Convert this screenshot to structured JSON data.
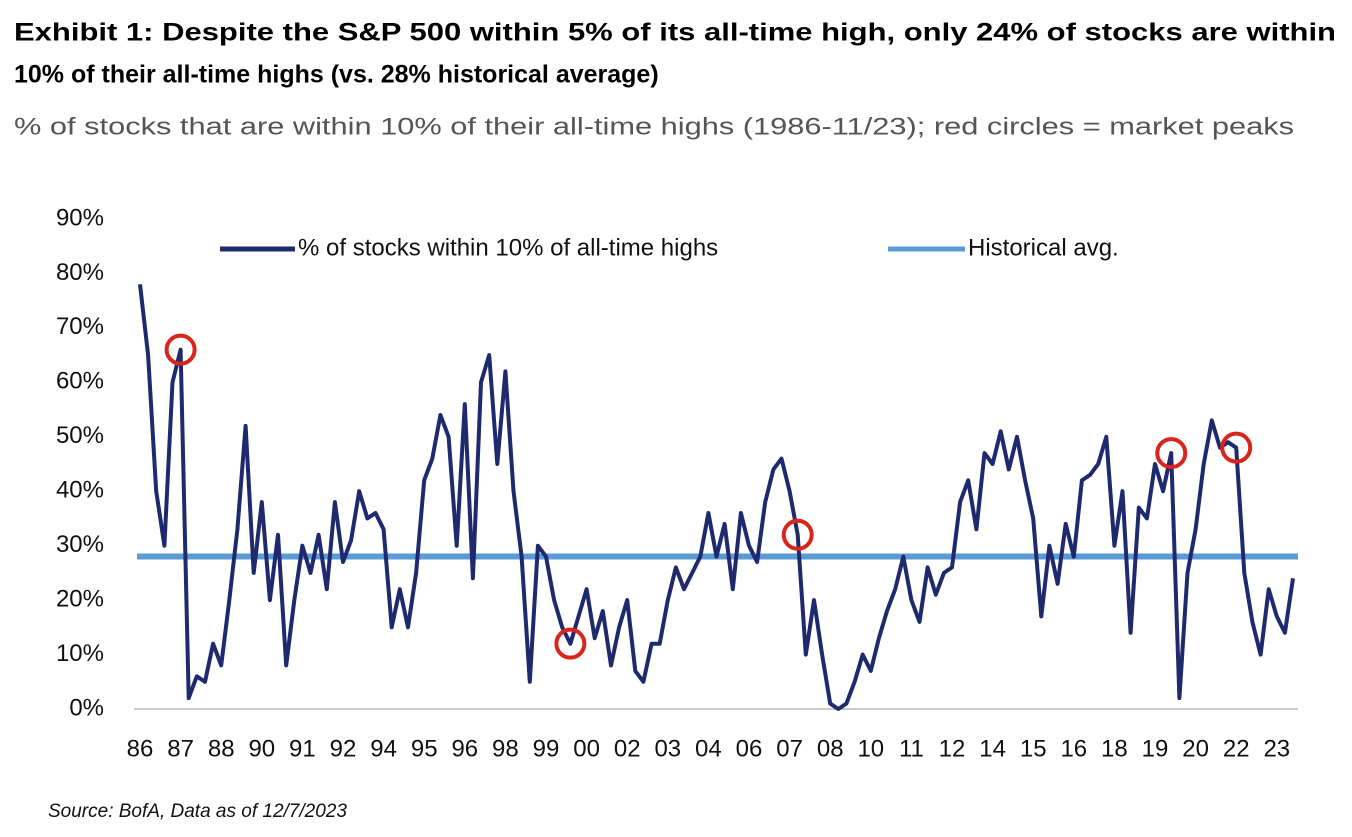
{
  "chart_data": {
    "type": "line",
    "title": [
      "Exhibit 1: Despite the S&P 500 within 5% of its all-time high, only 24% of stocks are within",
      "10% of their all-time highs (vs. 28% historical average)"
    ],
    "subtitle": "% of stocks that are within 10% of their all-time highs (1986-11/23); red circles = market peaks",
    "source": "Source: BofA, Data as of 12/7/2023",
    "categories": [
      "86",
      null,
      null,
      null,
      null,
      "87",
      null,
      null,
      null,
      null,
      "88",
      null,
      null,
      null,
      null,
      "90",
      null,
      null,
      null,
      null,
      "91",
      null,
      null,
      null,
      null,
      "92",
      null,
      null,
      null,
      null,
      "94",
      null,
      null,
      null,
      null,
      "95",
      null,
      null,
      null,
      null,
      "96",
      null,
      null,
      null,
      null,
      "98",
      null,
      null,
      null,
      null,
      "99",
      null,
      null,
      null,
      null,
      "00",
      null,
      null,
      null,
      null,
      "02",
      null,
      null,
      null,
      null,
      "03",
      null,
      null,
      null,
      null,
      "04",
      null,
      null,
      null,
      null,
      "06",
      null,
      null,
      null,
      null,
      "07",
      null,
      null,
      null,
      null,
      "08",
      null,
      null,
      null,
      null,
      "10",
      null,
      null,
      null,
      null,
      "11",
      null,
      null,
      null,
      null,
      "12",
      null,
      null,
      null,
      null,
      "14",
      null,
      null,
      null,
      null,
      "15",
      null,
      null,
      null,
      null,
      "16",
      null,
      null,
      null,
      null,
      "18",
      null,
      null,
      null,
      null,
      "19",
      null,
      null,
      null,
      null,
      "20",
      null,
      null,
      null,
      null,
      "22",
      null,
      null,
      null,
      null,
      "23",
      null,
      null
    ],
    "series": [
      {
        "name": "% of stocks within 10% of all-time highs",
        "color": "#1f2a6e",
        "values": [
          78,
          65,
          40,
          30,
          60,
          66,
          2,
          6,
          5,
          12,
          8,
          20,
          33,
          52,
          25,
          38,
          20,
          32,
          8,
          20,
          30,
          25,
          32,
          22,
          38,
          27,
          31,
          40,
          35,
          36,
          33,
          15,
          22,
          15,
          25,
          42,
          46,
          54,
          50,
          30,
          56,
          24,
          60,
          65,
          45,
          62,
          40,
          28,
          5,
          30,
          28,
          20,
          15,
          12,
          17,
          22,
          13,
          18,
          8,
          15,
          20,
          7,
          5,
          12,
          12,
          20,
          26,
          22,
          25,
          28,
          36,
          28,
          34,
          22,
          36,
          30,
          27,
          38,
          44,
          46,
          40,
          32,
          10,
          20,
          10,
          1,
          0,
          1,
          5,
          10,
          7,
          13,
          18,
          22,
          28,
          20,
          16,
          26,
          21,
          25,
          26,
          38,
          42,
          33,
          47,
          45,
          51,
          44,
          50,
          42,
          35,
          17,
          30,
          23,
          34,
          28,
          42,
          43,
          45,
          50,
          30,
          40,
          14,
          37,
          35,
          45,
          40,
          47,
          2,
          25,
          33,
          45,
          53,
          48,
          49,
          48,
          25,
          16,
          10,
          22,
          17,
          14,
          24
        ]
      }
    ],
    "reference_line": {
      "name": "Historical avg.",
      "value": 28,
      "color": "#5b9bd5"
    },
    "peaks": {
      "color": "#d9261c",
      "indices": [
        5,
        53,
        81,
        127,
        135
      ]
    },
    "ylim": [
      0,
      90
    ],
    "yticks": [
      {
        "value": 0,
        "label": "0%"
      },
      {
        "value": 10,
        "label": "10%"
      },
      {
        "value": 20,
        "label": "20%"
      },
      {
        "value": 30,
        "label": "30%"
      },
      {
        "value": 40,
        "label": "40%"
      },
      {
        "value": 50,
        "label": "50%"
      },
      {
        "value": 60,
        "label": "60%"
      },
      {
        "value": 70,
        "label": "70%"
      },
      {
        "value": 80,
        "label": "80%"
      },
      {
        "value": 90,
        "label": "90%"
      }
    ],
    "grid": false
  }
}
